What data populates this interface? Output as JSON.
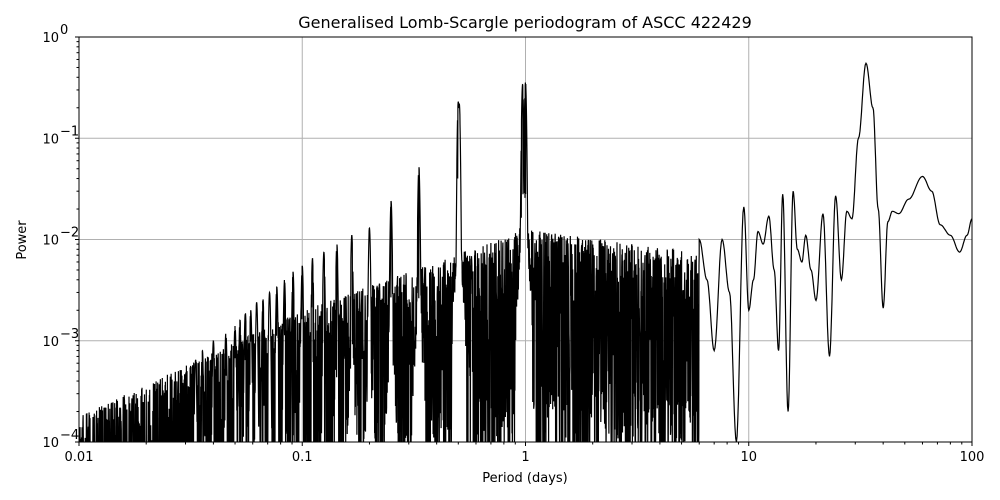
{
  "chart_data": {
    "type": "line",
    "title": "Generalised Lomb-Scargle periodogram of ASCC 422429",
    "xlabel": "Period (days)",
    "ylabel": "Power",
    "xscale": "log",
    "yscale": "log",
    "xlim": [
      0.01,
      100
    ],
    "ylim": [
      0.0001,
      1
    ],
    "grid": true,
    "x_ticks": [
      {
        "value": 0.01,
        "label": "0.01"
      },
      {
        "value": 0.1,
        "label": "0.1"
      },
      {
        "value": 1,
        "label": "1"
      },
      {
        "value": 10,
        "label": "10"
      },
      {
        "value": 100,
        "label": "100"
      }
    ],
    "y_ticks": [
      {
        "value": 1,
        "base": "10",
        "exp": "0"
      },
      {
        "value": 0.1,
        "base": "10",
        "exp": "−1"
      },
      {
        "value": 0.01,
        "base": "10",
        "exp": "−2"
      },
      {
        "value": 0.001,
        "base": "10",
        "exp": "−3"
      },
      {
        "value": 0.0001,
        "base": "10",
        "exp": "−4"
      }
    ],
    "line_color": "#000000",
    "grid_color": "#b0b0b0",
    "harmonic_peaks": [
      {
        "period": 1.0,
        "power": 0.36
      },
      {
        "period": 0.97,
        "power": 0.34
      },
      {
        "period": 0.5,
        "power": 0.23
      },
      {
        "period": 0.505,
        "power": 0.22
      },
      {
        "period": 0.333,
        "power": 0.052
      },
      {
        "period": 0.25,
        "power": 0.024
      },
      {
        "period": 0.2,
        "power": 0.013
      },
      {
        "period": 0.1667,
        "power": 0.011
      },
      {
        "period": 0.1429,
        "power": 0.009
      },
      {
        "period": 0.125,
        "power": 0.0075
      },
      {
        "period": 0.1111,
        "power": 0.0065
      },
      {
        "period": 0.1,
        "power": 0.0055
      },
      {
        "period": 0.0909,
        "power": 0.0048
      },
      {
        "period": 0.0833,
        "power": 0.004
      },
      {
        "period": 0.0769,
        "power": 0.0034
      },
      {
        "period": 0.0714,
        "power": 0.003
      },
      {
        "period": 0.0667,
        "power": 0.0026
      },
      {
        "period": 0.0625,
        "power": 0.0024
      },
      {
        "period": 0.0588,
        "power": 0.002
      },
      {
        "period": 0.0556,
        "power": 0.0019
      },
      {
        "period": 0.0526,
        "power": 0.0016
      },
      {
        "period": 0.05,
        "power": 0.0014
      },
      {
        "period": 0.0455,
        "power": 0.0012
      },
      {
        "period": 0.04,
        "power": 0.001
      },
      {
        "period": 0.0357,
        "power": 0.0008
      },
      {
        "period": 0.0333,
        "power": 0.00065
      }
    ],
    "long_period_curve": [
      [
        6.0,
        0.01
      ],
      [
        6.5,
        0.004
      ],
      [
        7.0,
        0.0008
      ],
      [
        7.6,
        0.01
      ],
      [
        8.2,
        0.003
      ],
      [
        8.8,
        0.0001
      ],
      [
        9.5,
        0.021
      ],
      [
        10.0,
        0.002
      ],
      [
        10.5,
        0.004
      ],
      [
        11.0,
        0.012
      ],
      [
        11.6,
        0.009
      ],
      [
        12.3,
        0.017
      ],
      [
        13.0,
        0.005
      ],
      [
        13.6,
        0.0008
      ],
      [
        14.2,
        0.028
      ],
      [
        15.0,
        0.0002
      ],
      [
        15.8,
        0.03
      ],
      [
        16.5,
        0.008
      ],
      [
        17.3,
        0.006
      ],
      [
        18.0,
        0.011
      ],
      [
        19.0,
        0.005
      ],
      [
        20.0,
        0.0025
      ],
      [
        21.5,
        0.018
      ],
      [
        23.0,
        0.0007
      ],
      [
        24.5,
        0.027
      ],
      [
        26.0,
        0.004
      ],
      [
        27.5,
        0.019
      ],
      [
        29.0,
        0.016
      ],
      [
        31.0,
        0.1
      ],
      [
        33.5,
        0.55
      ],
      [
        36.0,
        0.2
      ],
      [
        38.0,
        0.02
      ],
      [
        40.0,
        0.0021
      ],
      [
        42.0,
        0.015
      ],
      [
        44.0,
        0.019
      ],
      [
        47.0,
        0.018
      ],
      [
        52.0,
        0.025
      ],
      [
        60.0,
        0.042
      ],
      [
        66.0,
        0.03
      ],
      [
        72.0,
        0.014
      ],
      [
        80.0,
        0.011
      ],
      [
        88.0,
        0.0075
      ],
      [
        95.0,
        0.011
      ],
      [
        100.0,
        0.016
      ]
    ]
  }
}
